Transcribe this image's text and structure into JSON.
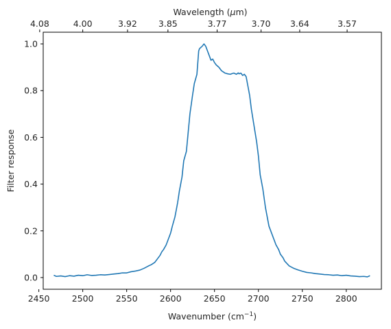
{
  "chart_data": {
    "type": "line",
    "xlabel": "Wavenumber (cm",
    "xlabel_sup": "−1",
    "xlabel_close": ")",
    "ylabel": "Filter response",
    "top_xlabel": "Wavelength (",
    "top_xlabel_greek": "μ",
    "top_xlabel_unit": "m)",
    "xlim": [
      2455,
      2840
    ],
    "ylim": [
      -0.05,
      1.05
    ],
    "x_ticks": [
      2450,
      2500,
      2550,
      2600,
      2650,
      2700,
      2750,
      2800
    ],
    "x_tick_labels": [
      "2450",
      "2500",
      "2550",
      "2600",
      "2650",
      "2700",
      "2750",
      "2800"
    ],
    "y_ticks": [
      0.0,
      0.2,
      0.4,
      0.6,
      0.8,
      1.0
    ],
    "y_tick_labels": [
      "0.0",
      "0.2",
      "0.4",
      "0.6",
      "0.8",
      "1.0"
    ],
    "top_ticks_wavenumber": [
      2451,
      2500,
      2551,
      2597,
      2653,
      2703,
      2747,
      2801
    ],
    "top_tick_labels": [
      "4.08",
      "4.00",
      "3.92",
      "3.85",
      "3.77",
      "3.70",
      "3.64",
      "3.57"
    ],
    "grid": false,
    "colors": {
      "line": "#1f77b4",
      "axis": "#000000",
      "text": "#222222"
    },
    "series": [
      {
        "x": [
          2467,
          2470,
          2475,
          2480,
          2485,
          2490,
          2495,
          2500,
          2505,
          2510,
          2515,
          2520,
          2525,
          2530,
          2535,
          2540,
          2545,
          2550,
          2555,
          2560,
          2565,
          2570,
          2575,
          2578,
          2582,
          2585,
          2588,
          2590,
          2592,
          2595,
          2598,
          2600,
          2602,
          2605,
          2608,
          2610,
          2613,
          2615,
          2618,
          2620,
          2622,
          2625,
          2627,
          2630,
          2632,
          2633,
          2636,
          2638,
          2640,
          2642,
          2644,
          2646,
          2648,
          2650,
          2652,
          2655,
          2658,
          2660,
          2662,
          2665,
          2668,
          2670,
          2672,
          2675,
          2677,
          2678,
          2680,
          2682,
          2684,
          2686,
          2688,
          2690,
          2692,
          2695,
          2698,
          2700,
          2702,
          2705,
          2708,
          2710,
          2712,
          2715,
          2718,
          2720,
          2723,
          2725,
          2728,
          2730,
          2735,
          2740,
          2745,
          2750,
          2755,
          2760,
          2765,
          2770,
          2775,
          2780,
          2785,
          2790,
          2795,
          2800,
          2805,
          2810,
          2815,
          2820,
          2824,
          2827
        ],
        "y": [
          0.01,
          0.005,
          0.007,
          0.004,
          0.008,
          0.006,
          0.01,
          0.008,
          0.012,
          0.009,
          0.01,
          0.012,
          0.011,
          0.013,
          0.015,
          0.017,
          0.02,
          0.02,
          0.025,
          0.028,
          0.032,
          0.04,
          0.05,
          0.055,
          0.065,
          0.08,
          0.095,
          0.11,
          0.12,
          0.14,
          0.17,
          0.19,
          0.22,
          0.26,
          0.32,
          0.37,
          0.43,
          0.5,
          0.54,
          0.62,
          0.7,
          0.78,
          0.83,
          0.87,
          0.97,
          0.98,
          0.99,
          1.0,
          0.99,
          0.97,
          0.95,
          0.93,
          0.935,
          0.92,
          0.91,
          0.9,
          0.885,
          0.88,
          0.875,
          0.872,
          0.87,
          0.873,
          0.875,
          0.87,
          0.876,
          0.872,
          0.875,
          0.865,
          0.87,
          0.86,
          0.82,
          0.78,
          0.72,
          0.65,
          0.58,
          0.52,
          0.44,
          0.38,
          0.3,
          0.26,
          0.22,
          0.19,
          0.16,
          0.14,
          0.12,
          0.1,
          0.085,
          0.07,
          0.05,
          0.04,
          0.033,
          0.027,
          0.022,
          0.02,
          0.017,
          0.015,
          0.013,
          0.012,
          0.01,
          0.011,
          0.008,
          0.01,
          0.007,
          0.006,
          0.004,
          0.005,
          0.003,
          0.008
        ]
      }
    ]
  }
}
